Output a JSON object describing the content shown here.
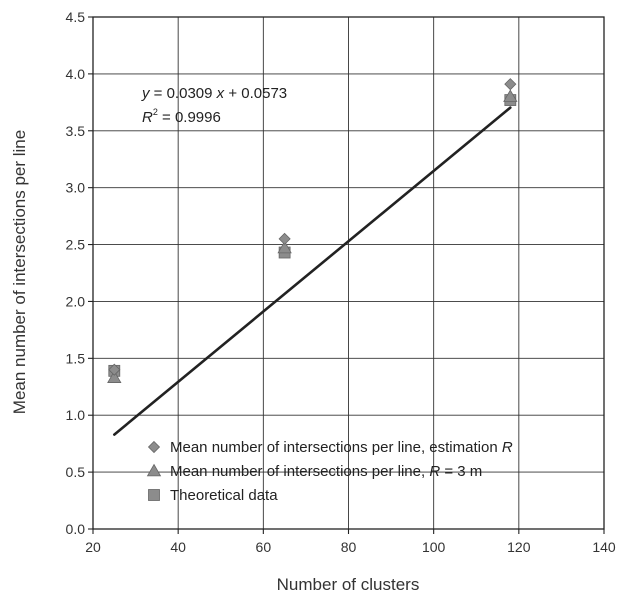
{
  "chart_data": {
    "type": "scatter",
    "xlabel": "Number of clusters",
    "ylabel": "Mean number of intersections per line",
    "xlim": [
      20,
      140
    ],
    "ylim": [
      0.0,
      4.5
    ],
    "xticks": [
      "20",
      "40",
      "60",
      "80",
      "100",
      "120",
      "140"
    ],
    "yticks": [
      "0.0",
      "0.5",
      "1.0",
      "1.5",
      "2.0",
      "2.5",
      "3.0",
      "3.5",
      "4.0",
      "4.5"
    ],
    "grid": true,
    "legend_position": "bottom-right",
    "series": [
      {
        "name": "Mean number of intersections per line, estimation R",
        "legend_label": "Mean number of intersections per line, estimation ",
        "legend_var": "R",
        "legend_suffix": "",
        "marker": "diamond",
        "color": "#8c8c8c",
        "x": [
          25,
          65,
          118
        ],
        "y": [
          1.4,
          2.55,
          3.91
        ]
      },
      {
        "name": "Mean number of intersections per line, R = 3 m",
        "legend_label": "Mean number of intersections per line, ",
        "legend_var": "R",
        "legend_suffix": " = 3 m",
        "marker": "triangle",
        "color": "#8c8c8c",
        "x": [
          25,
          65,
          118
        ],
        "y": [
          1.33,
          2.47,
          3.8
        ]
      },
      {
        "name": "Theoretical data",
        "legend_label": "Theoretical data",
        "legend_var": "",
        "legend_suffix": "",
        "marker": "square",
        "color": "#8c8c8c",
        "x": [
          25,
          65,
          118
        ],
        "y": [
          1.39,
          2.43,
          3.77
        ]
      }
    ],
    "trendline": {
      "slope": 0.0309,
      "intercept": 0.0573,
      "x_range": [
        25,
        118
      ],
      "color": "#222222"
    },
    "annotation": {
      "eq_var_y": "y",
      "eq_mid": " = 0.0309 ",
      "eq_var_x": "x",
      "eq_tail": " + 0.0573",
      "r2_var": "R",
      "r2_sup": "2",
      "r2_value": " = 0.9996"
    }
  }
}
